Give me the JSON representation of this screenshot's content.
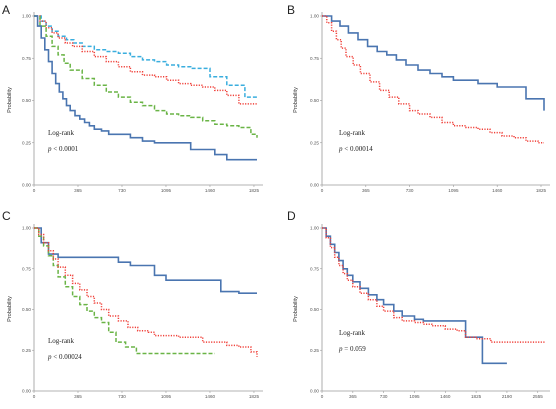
{
  "colors": {
    "blue": "#4a75b0",
    "red": "#f0413a",
    "green": "#6ab446",
    "cyan": "#3aaede",
    "axis": "#9a9a9a"
  },
  "chart_data": [
    {
      "type": "line",
      "letter": "A",
      "ylabel": "Probability",
      "xlim": [
        0,
        1900
      ],
      "ylim": [
        0,
        1
      ],
      "xticks": [
        "0",
        "365",
        "730",
        "1095",
        "1460",
        "1825"
      ],
      "xtick_values": [
        0,
        365,
        730,
        1095,
        1460,
        1825
      ],
      "yticks": [
        "0.00",
        "0.25",
        "0.50",
        "0.75",
        "1.00"
      ],
      "ytick_values": [
        0,
        0.25,
        0.5,
        0.75,
        1
      ],
      "annotation": {
        "line1": "Log-rank",
        "line2_italic": "p",
        "line2_rest": " < 0.0001"
      },
      "series": [
        {
          "color": "cyan",
          "style": "dashed",
          "x": [
            0,
            60,
            100,
            150,
            200,
            270,
            330,
            400,
            500,
            600,
            700,
            800,
            900,
            1000,
            1100,
            1200,
            1300,
            1460,
            1600,
            1750,
            1850
          ],
          "y": [
            1,
            0.97,
            0.94,
            0.91,
            0.88,
            0.86,
            0.84,
            0.82,
            0.8,
            0.79,
            0.78,
            0.76,
            0.74,
            0.73,
            0.71,
            0.7,
            0.69,
            0.64,
            0.59,
            0.52,
            0.52
          ]
        },
        {
          "color": "red",
          "style": "dotted",
          "x": [
            0,
            50,
            100,
            150,
            200,
            260,
            320,
            400,
            500,
            600,
            700,
            800,
            900,
            1000,
            1100,
            1200,
            1300,
            1400,
            1500,
            1600,
            1700,
            1850
          ],
          "y": [
            1,
            0.97,
            0.93,
            0.9,
            0.87,
            0.84,
            0.82,
            0.79,
            0.76,
            0.73,
            0.7,
            0.67,
            0.65,
            0.64,
            0.62,
            0.6,
            0.59,
            0.58,
            0.56,
            0.53,
            0.48,
            0.48
          ]
        },
        {
          "color": "green",
          "style": "dashed",
          "x": [
            0,
            50,
            100,
            150,
            200,
            250,
            300,
            400,
            500,
            600,
            700,
            800,
            900,
            1000,
            1100,
            1200,
            1300,
            1400,
            1500,
            1600,
            1700,
            1800,
            1850
          ],
          "y": [
            1,
            0.94,
            0.88,
            0.82,
            0.77,
            0.72,
            0.68,
            0.63,
            0.59,
            0.55,
            0.52,
            0.49,
            0.47,
            0.44,
            0.42,
            0.41,
            0.4,
            0.38,
            0.36,
            0.35,
            0.34,
            0.3,
            0.28
          ]
        },
        {
          "color": "blue",
          "style": "solid",
          "x": [
            0,
            30,
            60,
            90,
            120,
            150,
            180,
            210,
            240,
            270,
            300,
            340,
            380,
            420,
            460,
            500,
            560,
            620,
            680,
            740,
            800,
            900,
            1000,
            1095,
            1200,
            1300,
            1460,
            1500,
            1600,
            1700,
            1850
          ],
          "y": [
            1,
            0.94,
            0.87,
            0.8,
            0.73,
            0.66,
            0.6,
            0.55,
            0.51,
            0.47,
            0.44,
            0.41,
            0.39,
            0.37,
            0.35,
            0.33,
            0.32,
            0.3,
            0.3,
            0.3,
            0.28,
            0.26,
            0.25,
            0.25,
            0.25,
            0.21,
            0.21,
            0.18,
            0.15,
            0.15,
            0.15
          ]
        }
      ]
    },
    {
      "type": "line",
      "letter": "B",
      "ylabel": "Probability",
      "xlim": [
        0,
        1900
      ],
      "ylim": [
        0,
        1
      ],
      "xticks": [
        "0",
        "365",
        "730",
        "1095",
        "1460",
        "1825"
      ],
      "xtick_values": [
        0,
        365,
        730,
        1095,
        1460,
        1825
      ],
      "yticks": [
        "0.00",
        "0.25",
        "0.50",
        "0.75",
        "1.00"
      ],
      "ytick_values": [
        0,
        0.25,
        0.5,
        0.75,
        1
      ],
      "annotation": {
        "line1": "Log-rank",
        "line2_italic": "p",
        "line2_rest": " < 0.00014"
      },
      "series": [
        {
          "color": "blue",
          "style": "solid",
          "x": [
            0,
            80,
            150,
            220,
            300,
            380,
            460,
            540,
            620,
            700,
            800,
            900,
            1000,
            1095,
            1200,
            1300,
            1460,
            1600,
            1700,
            1800,
            1850
          ],
          "y": [
            1,
            0.97,
            0.94,
            0.9,
            0.86,
            0.82,
            0.79,
            0.77,
            0.74,
            0.71,
            0.68,
            0.66,
            0.64,
            0.62,
            0.62,
            0.6,
            0.58,
            0.58,
            0.51,
            0.51,
            0.44
          ]
        },
        {
          "color": "red",
          "style": "dotted",
          "x": [
            0,
            40,
            80,
            120,
            160,
            200,
            260,
            320,
            400,
            480,
            560,
            640,
            730,
            800,
            900,
            1000,
            1095,
            1200,
            1300,
            1400,
            1500,
            1600,
            1700,
            1800,
            1850
          ],
          "y": [
            1,
            0.96,
            0.91,
            0.86,
            0.81,
            0.76,
            0.71,
            0.66,
            0.61,
            0.56,
            0.52,
            0.48,
            0.44,
            0.42,
            0.4,
            0.37,
            0.35,
            0.34,
            0.33,
            0.31,
            0.29,
            0.28,
            0.26,
            0.25,
            0.25
          ]
        }
      ]
    },
    {
      "type": "line",
      "letter": "C",
      "ylabel": "Probability",
      "xlim": [
        0,
        1900
      ],
      "ylim": [
        0,
        1
      ],
      "xticks": [
        "0",
        "365",
        "730",
        "1095",
        "1460",
        "1825"
      ],
      "xtick_values": [
        0,
        365,
        730,
        1095,
        1460,
        1825
      ],
      "yticks": [
        "0.00",
        "0.25",
        "0.50",
        "0.75",
        "1.00"
      ],
      "ytick_values": [
        0,
        0.25,
        0.5,
        0.75,
        1
      ],
      "annotation": {
        "line1": "Log-rank",
        "line2_italic": "p",
        "line2_rest": " < 0.00024"
      },
      "series": [
        {
          "color": "blue",
          "style": "solid",
          "x": [
            0,
            60,
            120,
            200,
            300,
            400,
            500,
            600,
            700,
            800,
            900,
            1000,
            1095,
            1200,
            1300,
            1460,
            1550,
            1700,
            1850
          ],
          "y": [
            1,
            0.91,
            0.84,
            0.82,
            0.82,
            0.82,
            0.82,
            0.82,
            0.79,
            0.77,
            0.77,
            0.71,
            0.68,
            0.68,
            0.68,
            0.68,
            0.61,
            0.6,
            0.6
          ]
        },
        {
          "color": "green",
          "style": "dashed",
          "x": [
            0,
            40,
            80,
            120,
            160,
            200,
            260,
            320,
            380,
            440,
            500,
            560,
            620,
            680,
            760,
            850,
            950,
            1095,
            1200,
            1300,
            1400,
            1500
          ],
          "y": [
            1,
            0.95,
            0.89,
            0.83,
            0.77,
            0.7,
            0.64,
            0.58,
            0.53,
            0.49,
            0.45,
            0.42,
            0.36,
            0.3,
            0.27,
            0.23,
            0.23,
            0.23,
            0.23,
            0.23,
            0.23,
            0.23
          ]
        },
        {
          "color": "red",
          "style": "dotted",
          "x": [
            0,
            40,
            80,
            120,
            160,
            200,
            260,
            320,
            380,
            440,
            500,
            560,
            620,
            700,
            780,
            860,
            950,
            1000,
            1095,
            1200,
            1300,
            1400,
            1500,
            1600,
            1700,
            1800,
            1850
          ],
          "y": [
            1,
            0.96,
            0.91,
            0.86,
            0.81,
            0.76,
            0.71,
            0.66,
            0.62,
            0.58,
            0.54,
            0.5,
            0.46,
            0.43,
            0.39,
            0.37,
            0.36,
            0.34,
            0.34,
            0.33,
            0.33,
            0.3,
            0.3,
            0.28,
            0.27,
            0.24,
            0.21
          ]
        }
      ]
    },
    {
      "type": "line",
      "letter": "D",
      "ylabel": "Probability",
      "xlim": [
        0,
        2700
      ],
      "ylim": [
        0,
        1
      ],
      "xticks": [
        "0",
        "365",
        "730",
        "1095",
        "1460",
        "1825",
        "2190",
        "2555"
      ],
      "xtick_values": [
        0,
        365,
        730,
        1095,
        1460,
        1825,
        2190,
        2555
      ],
      "yticks": [
        "0.00",
        "0.25",
        "0.50",
        "0.75",
        "1.00"
      ],
      "ytick_values": [
        0,
        0.25,
        0.5,
        0.75,
        1
      ],
      "annotation": {
        "line1": "Log-rank",
        "line2_italic": "p",
        "line2_rest": " = 0.059"
      },
      "series": [
        {
          "color": "blue",
          "style": "solid",
          "x": [
            0,
            50,
            100,
            150,
            200,
            250,
            300,
            365,
            450,
            550,
            650,
            730,
            850,
            950,
            1095,
            1200,
            1300,
            1460,
            1600,
            1700,
            1825,
            1900,
            2000,
            2190
          ],
          "y": [
            1,
            0.95,
            0.9,
            0.85,
            0.8,
            0.75,
            0.71,
            0.67,
            0.63,
            0.59,
            0.56,
            0.53,
            0.49,
            0.46,
            0.44,
            0.43,
            0.43,
            0.43,
            0.43,
            0.33,
            0.33,
            0.17,
            0.17,
            0.17
          ]
        },
        {
          "color": "red",
          "style": "dotted",
          "x": [
            0,
            50,
            100,
            150,
            200,
            250,
            300,
            365,
            450,
            550,
            650,
            730,
            850,
            950,
            1095,
            1200,
            1300,
            1460,
            1600,
            1700,
            1825,
            2000,
            2190,
            2400,
            2650
          ],
          "y": [
            1,
            0.94,
            0.88,
            0.82,
            0.77,
            0.72,
            0.68,
            0.64,
            0.6,
            0.56,
            0.52,
            0.49,
            0.45,
            0.43,
            0.42,
            0.41,
            0.4,
            0.38,
            0.37,
            0.33,
            0.32,
            0.3,
            0.3,
            0.3,
            0.3
          ]
        }
      ]
    }
  ]
}
